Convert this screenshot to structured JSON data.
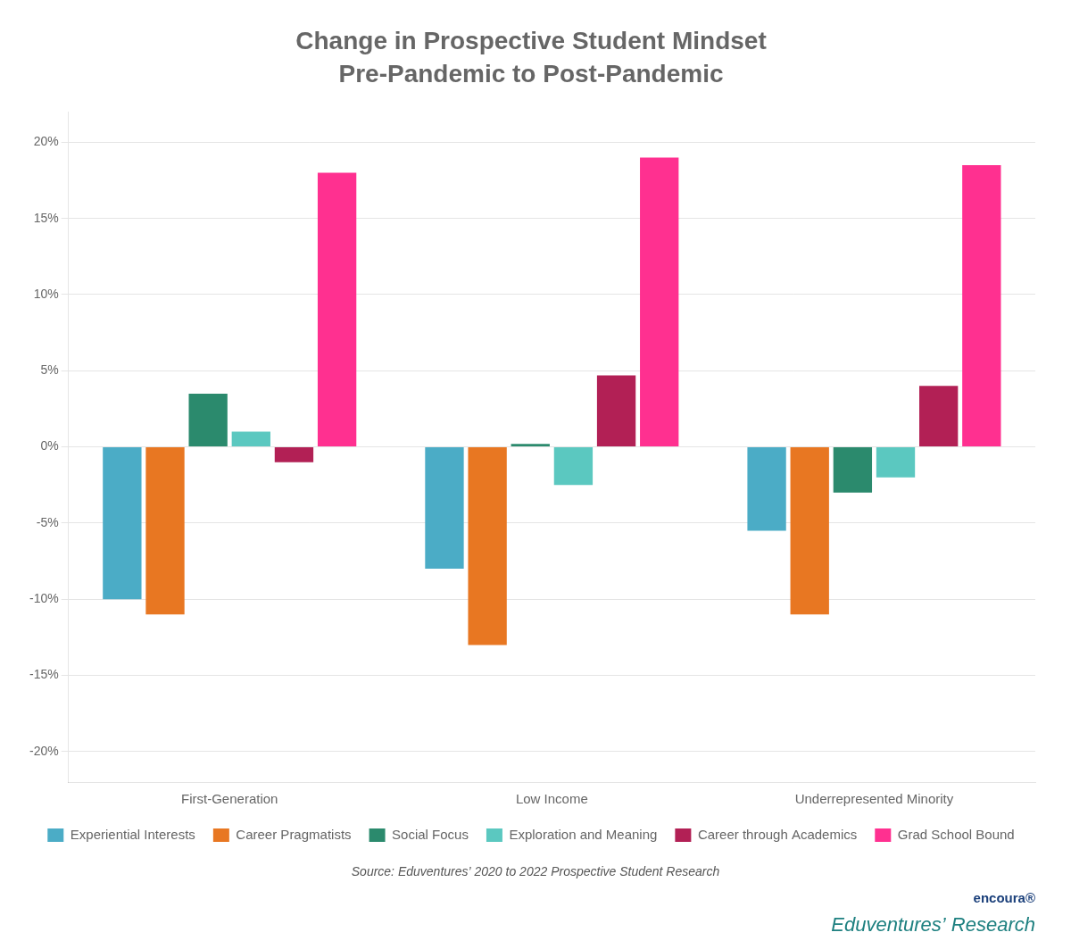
{
  "chart_data": {
    "type": "bar",
    "title": "Change in Prospective Student Mindset",
    "subtitle": "Pre-Pandemic to Post-Pandemic",
    "categories": [
      "First-Generation",
      "Low Income",
      "Underrepresented Minority"
    ],
    "series": [
      {
        "name": "Experiential Interests",
        "color": "#4BACC6",
        "values": [
          -10.0,
          -8.0,
          -5.5
        ]
      },
      {
        "name": "Career Pragmatists",
        "color": "#E87722",
        "values": [
          -11.0,
          -13.0,
          -11.0
        ]
      },
      {
        "name": "Social Focus",
        "color": "#2B8A6D",
        "values": [
          3.5,
          0.2,
          -3.0
        ]
      },
      {
        "name": "Exploration and Meaning",
        "color": "#5BC8C0",
        "values": [
          1.0,
          -2.5,
          -2.0
        ]
      },
      {
        "name": "Career through Academics",
        "color": "#B22055",
        "values": [
          -1.0,
          4.7,
          4.0
        ]
      },
      {
        "name": "Grad School Bound",
        "color": "#FF3090",
        "values": [
          18.0,
          19.0,
          18.5
        ]
      }
    ],
    "ylim": [
      -22,
      22
    ],
    "yticks": [
      {
        "value": -20,
        "label": "-20%"
      },
      {
        "value": -15,
        "label": "-15%"
      },
      {
        "value": -10,
        "label": "-10%"
      },
      {
        "value": -5,
        "label": "-5%"
      },
      {
        "value": 0,
        "label": "0%"
      },
      {
        "value": 5,
        "label": "5%"
      },
      {
        "value": 10,
        "label": "10%"
      },
      {
        "value": 15,
        "label": "15%"
      },
      {
        "value": 20,
        "label": "20%"
      }
    ],
    "grid": true,
    "legend": "bottom",
    "annotations": [
      "Source: Eduventures’ 2020 to 2022 Prospective Student Research",
      "encoura®",
      "Eduventures’ Research"
    ]
  }
}
